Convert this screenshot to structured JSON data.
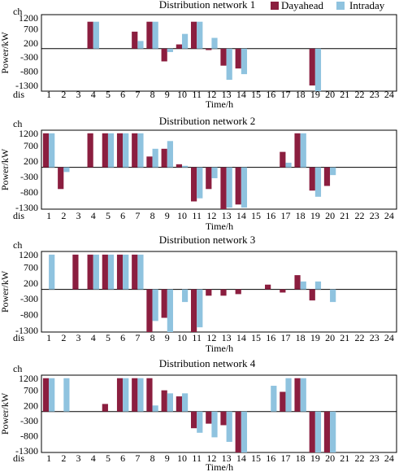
{
  "colors": {
    "dayahead": "#8b1e3f",
    "intraday": "#8fc3df"
  },
  "legend": {
    "dayahead": "Dayahead",
    "intraday": "Intraday"
  },
  "chart_data": [
    {
      "type": "bar",
      "title": "Distribution network 1",
      "ylabel": "Power/kW",
      "xlabel": "Time/h",
      "x_corner_label": "dis",
      "y_corner_label": "ch",
      "ylim": [
        -1500,
        1200
      ],
      "yticks": [
        "1200",
        "700",
        "200",
        "-300",
        "-800",
        "-1300"
      ],
      "categories": [
        "1",
        "2",
        "3",
        "4",
        "5",
        "6",
        "7",
        "8",
        "9",
        "10",
        "11",
        "12",
        "13",
        "14",
        "15",
        "16",
        "17",
        "18",
        "19",
        "20",
        "21",
        "22",
        "23",
        "24"
      ],
      "series": [
        {
          "name": "Dayahead",
          "values": [
            0,
            0,
            0,
            950,
            0,
            0,
            600,
            950,
            -450,
            150,
            950,
            -50,
            -600,
            -700,
            0,
            0,
            0,
            0,
            -1300,
            0,
            0,
            0,
            0,
            0
          ]
        },
        {
          "name": "Intraday",
          "values": [
            0,
            0,
            0,
            950,
            0,
            0,
            270,
            950,
            -120,
            520,
            950,
            380,
            -1100,
            -900,
            0,
            0,
            0,
            0,
            -1500,
            0,
            0,
            0,
            0,
            0
          ]
        }
      ]
    },
    {
      "type": "bar",
      "title": "Distribution network 2",
      "ylabel": "Power/kW",
      "xlabel": "Time/h",
      "x_corner_label": "dis",
      "y_corner_label": "ch",
      "ylim": [
        -1350,
        1200
      ],
      "yticks": [
        "1200",
        "700",
        "200",
        "-300",
        "-800",
        "-1300"
      ],
      "categories": [
        "1",
        "2",
        "3",
        "4",
        "5",
        "6",
        "7",
        "8",
        "9",
        "10",
        "11",
        "12",
        "13",
        "14",
        "15",
        "16",
        "17",
        "18",
        "19",
        "20",
        "21",
        "22",
        "23",
        "24"
      ],
      "series": [
        {
          "name": "Dayahead",
          "values": [
            1100,
            -700,
            0,
            1100,
            1100,
            1100,
            1100,
            350,
            600,
            100,
            -1100,
            -700,
            -1350,
            -1200,
            0,
            0,
            500,
            1100,
            -750,
            -600,
            0,
            0,
            0,
            0
          ]
        },
        {
          "name": "Intraday",
          "values": [
            1100,
            -150,
            0,
            0,
            1100,
            1100,
            1100,
            600,
            850,
            50,
            -1000,
            -350,
            -1300,
            -1300,
            0,
            0,
            150,
            1100,
            -950,
            -250,
            0,
            0,
            0,
            0
          ]
        }
      ]
    },
    {
      "type": "bar",
      "title": "Distribution network 3",
      "ylabel": "Power/kW",
      "xlabel": "Time/h",
      "x_corner_label": "dis",
      "y_corner_label": "ch",
      "ylim": [
        -1350,
        1200
      ],
      "yticks": [
        "1200",
        "700",
        "200",
        "-300",
        "-800",
        "-1300"
      ],
      "categories": [
        "1",
        "2",
        "3",
        "4",
        "5",
        "6",
        "7",
        "8",
        "9",
        "10",
        "11",
        "12",
        "13",
        "14",
        "15",
        "16",
        "17",
        "18",
        "19",
        "20",
        "21",
        "22",
        "23",
        "24"
      ],
      "series": [
        {
          "name": "Dayahead",
          "values": [
            0,
            0,
            1100,
            1100,
            1100,
            1100,
            1100,
            -1350,
            -900,
            0,
            -1350,
            -200,
            -200,
            -150,
            0,
            150,
            -100,
            450,
            -350,
            0,
            0,
            0,
            0,
            0
          ]
        },
        {
          "name": "Intraday",
          "values": [
            1100,
            0,
            0,
            1100,
            1100,
            1100,
            1100,
            -1000,
            -1350,
            -400,
            -1200,
            0,
            0,
            0,
            0,
            0,
            0,
            250,
            250,
            -400,
            0,
            0,
            0,
            0
          ]
        }
      ]
    },
    {
      "type": "bar",
      "title": "Distribution network 4",
      "ylabel": "Power/kW",
      "xlabel": "Time/h",
      "x_corner_label": "dis",
      "y_corner_label": "ch",
      "ylim": [
        -1350,
        1200
      ],
      "yticks": [
        "1200",
        "700",
        "200",
        "-300",
        "-800",
        "-1300"
      ],
      "categories": [
        "1",
        "2",
        "3",
        "4",
        "5",
        "6",
        "7",
        "8",
        "9",
        "10",
        "11",
        "12",
        "13",
        "14",
        "15",
        "16",
        "17",
        "18",
        "19",
        "20",
        "21",
        "22",
        "23",
        "24"
      ],
      "series": [
        {
          "name": "Dayahead",
          "values": [
            1100,
            0,
            0,
            0,
            250,
            1100,
            1100,
            1100,
            700,
            500,
            -550,
            -400,
            -450,
            -1350,
            0,
            0,
            650,
            1100,
            -1350,
            -1350,
            0,
            0,
            0,
            0
          ]
        },
        {
          "name": "Intraday",
          "values": [
            1100,
            1100,
            0,
            0,
            0,
            1100,
            1100,
            200,
            600,
            600,
            -700,
            -850,
            -1000,
            -1350,
            0,
            850,
            1100,
            1100,
            -1350,
            -1350,
            0,
            0,
            0,
            0
          ]
        }
      ]
    }
  ]
}
